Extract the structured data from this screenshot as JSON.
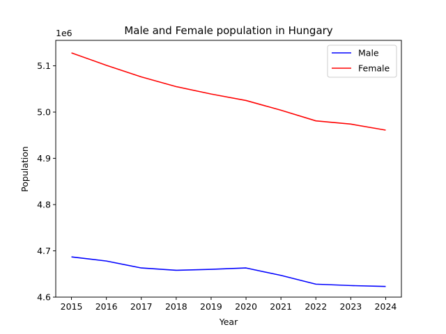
{
  "chart_data": {
    "type": "line",
    "title": "Male and Female population in Hungary",
    "xlabel": "Year",
    "ylabel": "Population",
    "offset_label": "1e6",
    "x": [
      2015,
      2016,
      2017,
      2018,
      2019,
      2020,
      2021,
      2022,
      2023,
      2024
    ],
    "x_ticks": [
      "2015",
      "2016",
      "2017",
      "2018",
      "2019",
      "2020",
      "2021",
      "2022",
      "2023",
      "2024"
    ],
    "y_ticks": [
      4.6,
      4.7,
      4.8,
      4.9,
      5.0,
      5.1
    ],
    "y_tick_labels": [
      "4.6",
      "4.7",
      "4.8",
      "4.9",
      "5.0",
      "5.1"
    ],
    "ylim": [
      4.6,
      5.155
    ],
    "grid": false,
    "legend_position": "top-right",
    "series": [
      {
        "name": "Male",
        "color": "#0000ff",
        "values": [
          4.687,
          4.678,
          4.663,
          4.658,
          4.66,
          4.663,
          4.647,
          4.628,
          4.625,
          4.623
        ]
      },
      {
        "name": "Female",
        "color": "#ff0000",
        "values": [
          5.128,
          5.101,
          5.076,
          5.055,
          5.039,
          5.025,
          5.004,
          4.981,
          4.974,
          4.961
        ]
      }
    ]
  }
}
